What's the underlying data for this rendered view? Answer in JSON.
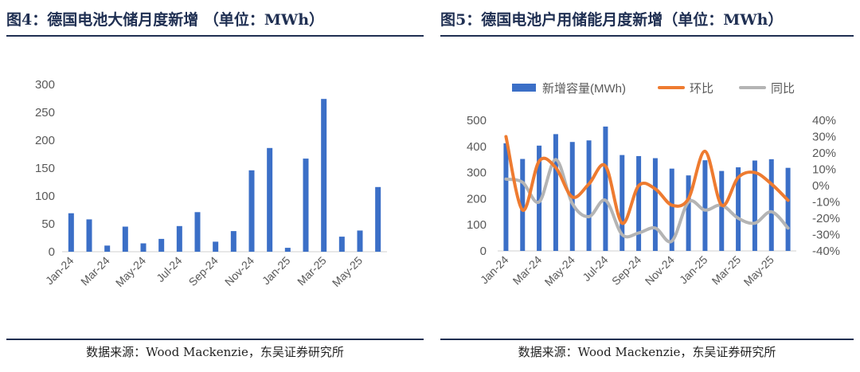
{
  "charts": [
    {
      "title": "图4：德国电池大储月度新增 （单位：MWh）",
      "source": "数据来源：Wood Mackenzie，东吴证券研究所",
      "chart_data": {
        "type": "bar",
        "categories": [
          "Jan-24",
          "Feb-24",
          "Mar-24",
          "Apr-24",
          "May-24",
          "Jun-24",
          "Jul-24",
          "Aug-24",
          "Sep-24",
          "Oct-24",
          "Nov-24",
          "Dec-24",
          "Jan-25",
          "Feb-25",
          "Mar-25",
          "Apr-25",
          "May-25",
          "Jun-25"
        ],
        "tick_labels": [
          "Jan-24",
          "Mar-24",
          "May-24",
          "Jul-24",
          "Sep-24",
          "Nov-24",
          "Jan-25",
          "Mar-25",
          "May-25"
        ],
        "values": [
          69,
          58,
          11,
          45,
          15,
          23,
          46,
          71,
          18,
          37,
          146,
          186,
          7,
          167,
          274,
          27,
          38,
          116
        ],
        "ylim": [
          0,
          300
        ],
        "yticks": [
          0,
          50,
          100,
          150,
          200,
          250,
          300
        ],
        "color": "#3b6fc7",
        "grid": false
      }
    },
    {
      "title": "图5：德国电池户用储能月度新增（单位：MWh）",
      "source": "数据来源：Wood Mackenzie，东吴证券研究所",
      "chart_data": {
        "type": "bar+line",
        "categories": [
          "Jan-24",
          "Feb-24",
          "Mar-24",
          "Apr-24",
          "May-24",
          "Jun-24",
          "Jul-24",
          "Aug-24",
          "Sep-24",
          "Oct-24",
          "Nov-24",
          "Dec-24",
          "Jan-25",
          "Feb-25",
          "Mar-25",
          "Apr-25",
          "May-25",
          "Jun-25"
        ],
        "tick_labels": [
          "Jan-24",
          "Mar-24",
          "May-24",
          "Jul-24",
          "Sep-24",
          "Nov-24",
          "Jan-25",
          "Mar-25",
          "May-25"
        ],
        "legend": [
          "新增容量(MWh)",
          "环比",
          "同比"
        ],
        "legend_position": "top",
        "series": [
          {
            "name": "新增容量(MWh)",
            "type": "bar",
            "axis": "left",
            "color": "#3b6fc7",
            "values": [
              412,
              352,
              403,
              447,
              417,
              423,
              476,
              367,
              363,
              355,
              315,
              289,
              347,
              306,
              320,
              346,
              351,
              318
            ]
          },
          {
            "name": "环比",
            "type": "line",
            "axis": "right",
            "color": "#ee7b30",
            "values": [
              0.3,
              -0.15,
              0.15,
              0.11,
              -0.07,
              0.01,
              0.12,
              -0.23,
              0,
              -0.02,
              -0.12,
              -0.08,
              0.21,
              -0.12,
              0.05,
              0.08,
              0.01,
              -0.09
            ]
          },
          {
            "name": "同比",
            "type": "line",
            "axis": "right",
            "color": "#b4b4b4",
            "values": [
              0.04,
              0.02,
              -0.1,
              0.16,
              -0.11,
              -0.19,
              -0.09,
              -0.3,
              -0.29,
              -0.26,
              -0.34,
              -0.1,
              -0.15,
              -0.12,
              -0.2,
              -0.23,
              -0.16,
              -0.26
            ]
          }
        ],
        "ylim": [
          0,
          500
        ],
        "yticks": [
          0,
          100,
          200,
          300,
          400,
          500
        ],
        "y2lim": [
          -0.4,
          0.4
        ],
        "y2ticks": [
          "-40%",
          "-30%",
          "-20%",
          "-10%",
          "0%",
          "10%",
          "20%",
          "30%",
          "40%"
        ],
        "grid": false
      }
    }
  ]
}
